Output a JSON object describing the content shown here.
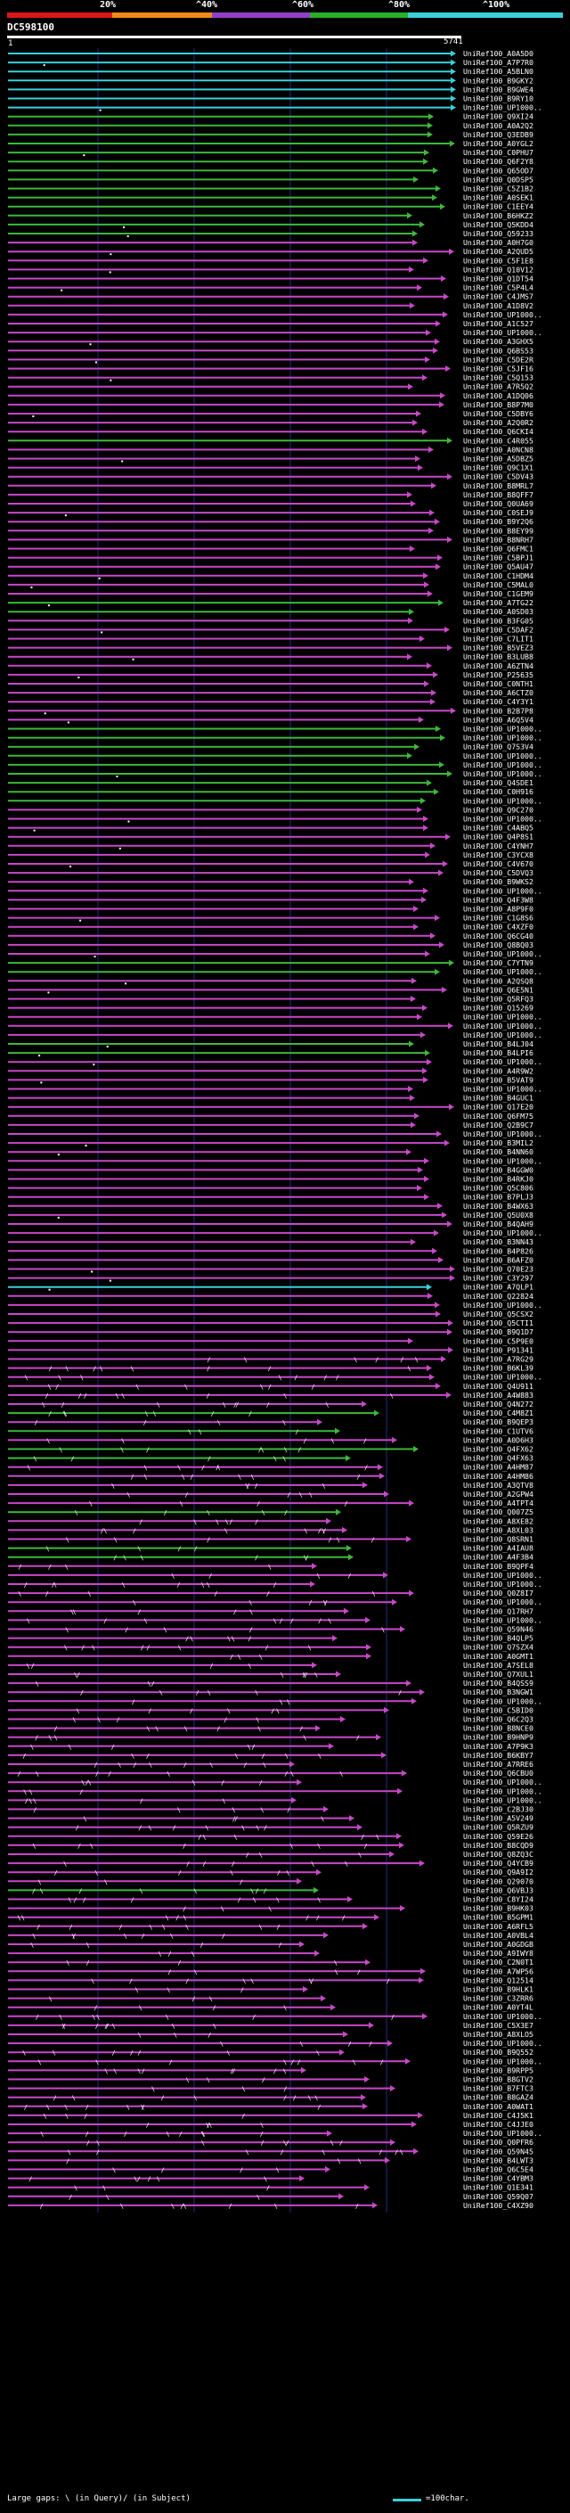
{
  "header": {
    "percent_labels": [
      "20%",
      "^40%",
      "^60%",
      "^80%",
      "^100%"
    ],
    "scale_colors": [
      "#d81818",
      "#f08a18",
      "#9040c8",
      "#28b028",
      "#3ad0d8"
    ],
    "query_id": "DC598100",
    "query_start": "1",
    "query_end": "5741"
  },
  "colors": {
    "cyan": "#3ad0d8",
    "green": "#3db83a",
    "magenta": "#c848c8",
    "bg": "#000000",
    "grid": "#2a2a7a"
  },
  "hits": [
    {
      "label": "UniRef100_A0A5D0",
      "c": "c"
    },
    {
      "label": "UniRef100_A7P7R0",
      "c": "c"
    },
    {
      "label": "UniRef100_A5BLN0",
      "c": "c"
    },
    {
      "label": "UniRef100_B9GKY2",
      "c": "c"
    },
    {
      "label": "UniRef100_B9GWE4",
      "c": "c"
    },
    {
      "label": "UniRef100_B9RY10",
      "c": "c"
    },
    {
      "label": "UniRef100_UP1000..",
      "c": "c"
    },
    {
      "label": "UniRef100_Q9XI24",
      "c": "g"
    },
    {
      "label": "UniRef100_A0A2Q2",
      "c": "g"
    },
    {
      "label": "UniRef100_Q3EDB9",
      "c": "g"
    },
    {
      "label": "UniRef100_A0YGL2",
      "c": "g"
    },
    {
      "label": "UniRef100_C0PHU7",
      "c": "g"
    },
    {
      "label": "UniRef100_Q6F2Y8",
      "c": "g"
    },
    {
      "label": "UniRef100_Q65OD7",
      "c": "g"
    },
    {
      "label": "UniRef100_Q0DSP5",
      "c": "g"
    },
    {
      "label": "UniRef100_C5Z1B2",
      "c": "g"
    },
    {
      "label": "UniRef100_A0SEK1",
      "c": "g"
    },
    {
      "label": "UniRef100_C1EEY4",
      "c": "g"
    },
    {
      "label": "UniRef100_B6HKZ2",
      "c": "g"
    },
    {
      "label": "UniRef100_Q5KDD4",
      "c": "g"
    },
    {
      "label": "UniRef100_Q59233",
      "c": "g"
    },
    {
      "label": "UniRef100_A0H7G0",
      "c": "m"
    },
    {
      "label": "UniRef100_A2QUD5",
      "c": "m"
    },
    {
      "label": "UniRef100_C5F1E8",
      "c": "m"
    },
    {
      "label": "UniRef100_Q10V12",
      "c": "m"
    },
    {
      "label": "UniRef100_Q1DT54",
      "c": "m"
    },
    {
      "label": "UniRef100_C5P4L4",
      "c": "m"
    },
    {
      "label": "UniRef100_C4JMS7",
      "c": "m"
    },
    {
      "label": "UniRef100_A1D8V2",
      "c": "m"
    },
    {
      "label": "UniRef100_UP1000..",
      "c": "m"
    },
    {
      "label": "UniRef100_A1C527",
      "c": "m"
    },
    {
      "label": "UniRef100_UP1000..",
      "c": "m"
    },
    {
      "label": "UniRef100_A3GHX5",
      "c": "m"
    },
    {
      "label": "UniRef100_Q6BS53",
      "c": "m"
    },
    {
      "label": "UniRef100_C5DE2R",
      "c": "m"
    },
    {
      "label": "UniRef100_C5JF16",
      "c": "m"
    },
    {
      "label": "UniRef100_C5Q153",
      "c": "m"
    },
    {
      "label": "UniRef100_A7R5Q2",
      "c": "m"
    },
    {
      "label": "UniRef100_A1DQ06",
      "c": "m"
    },
    {
      "label": "UniRef100_B8P7M0",
      "c": "m"
    },
    {
      "label": "UniRef100_C5DBY6",
      "c": "m"
    },
    {
      "label": "UniRef100_A2Q0R2",
      "c": "m"
    },
    {
      "label": "UniRef100_Q6CKI4",
      "c": "m"
    },
    {
      "label": "UniRef100_C4R055",
      "c": "g"
    },
    {
      "label": "UniRef100_A0NCN8",
      "c": "m"
    },
    {
      "label": "UniRef100_A5DBZ5",
      "c": "m"
    },
    {
      "label": "UniRef100_Q9C1X1",
      "c": "m"
    },
    {
      "label": "UniRef100_C5DV43",
      "c": "m"
    },
    {
      "label": "UniRef100_B8MRL7",
      "c": "m"
    },
    {
      "label": "UniRef100_B8QFF7",
      "c": "m"
    },
    {
      "label": "UniRef100_Q0UA69",
      "c": "m"
    },
    {
      "label": "UniRef100_C0SEJ9",
      "c": "m"
    },
    {
      "label": "UniRef100_B9Y2Q6",
      "c": "m"
    },
    {
      "label": "UniRef100_B8EY99",
      "c": "m"
    },
    {
      "label": "UniRef100_B8NRH7",
      "c": "m"
    },
    {
      "label": "UniRef100_Q6FMC1",
      "c": "m"
    },
    {
      "label": "UniRef100_C5BPJ1",
      "c": "m"
    },
    {
      "label": "UniRef100_Q5AU47",
      "c": "m"
    },
    {
      "label": "UniRef100_C1HDM4",
      "c": "m"
    },
    {
      "label": "UniRef100_C5MAL0",
      "c": "m"
    },
    {
      "label": "UniRef100_C1GEM9",
      "c": "m"
    },
    {
      "label": "UniRef100_A7TG22",
      "c": "g"
    },
    {
      "label": "UniRef100_A0SD03",
      "c": "g"
    },
    {
      "label": "UniRef100_B3FG05",
      "c": "m"
    },
    {
      "label": "UniRef100_C5DAF2",
      "c": "m"
    },
    {
      "label": "UniRef100_C7LIT1",
      "c": "m"
    },
    {
      "label": "UniRef100_B5VEZ3",
      "c": "m"
    },
    {
      "label": "UniRef100_B3LUB8",
      "c": "m"
    },
    {
      "label": "UniRef100_A6ZTN4",
      "c": "m"
    },
    {
      "label": "UniRef100_P25635",
      "c": "m"
    },
    {
      "label": "UniRef100_C0NTH1",
      "c": "m"
    },
    {
      "label": "UniRef100_A6CTZ0",
      "c": "m"
    },
    {
      "label": "UniRef100_C4Y3Y1",
      "c": "m"
    },
    {
      "label": "UniRef100_B2B7P8",
      "c": "m"
    },
    {
      "label": "UniRef100_A6Q5V4",
      "c": "m"
    },
    {
      "label": "UniRef100_UP1000..",
      "c": "g"
    },
    {
      "label": "UniRef100_UP1000..",
      "c": "g"
    },
    {
      "label": "UniRef100_Q7S3V4",
      "c": "g"
    },
    {
      "label": "UniRef100_UP1000..",
      "c": "g"
    },
    {
      "label": "UniRef100_UP1000..",
      "c": "g"
    },
    {
      "label": "UniRef100_UP1000..",
      "c": "g"
    },
    {
      "label": "UniRef100_Q4SDE1",
      "c": "g"
    },
    {
      "label": "UniRef100_C0H916",
      "c": "g"
    },
    {
      "label": "UniRef100_UP1000..",
      "c": "g"
    },
    {
      "label": "UniRef100_Q9C270",
      "c": "m"
    },
    {
      "label": "UniRef100_UP1000..",
      "c": "m"
    },
    {
      "label": "UniRef100_C4ABQ5",
      "c": "m"
    },
    {
      "label": "UniRef100_Q4P8S1",
      "c": "m"
    },
    {
      "label": "UniRef100_C4YNH7",
      "c": "m"
    },
    {
      "label": "UniRef100_C3YCX8",
      "c": "m"
    },
    {
      "label": "UniRef100_C4V670",
      "c": "m"
    },
    {
      "label": "UniRef100_C5DVQ3",
      "c": "m"
    },
    {
      "label": "UniRef100_B9WKS2",
      "c": "m"
    },
    {
      "label": "UniRef100_UP1000..",
      "c": "m"
    },
    {
      "label": "UniRef100_Q4F3W8",
      "c": "m"
    },
    {
      "label": "UniRef100_A8P9F0",
      "c": "m"
    },
    {
      "label": "UniRef100_C1G8S6",
      "c": "m"
    },
    {
      "label": "UniRef100_C4XZF0",
      "c": "m"
    },
    {
      "label": "UniRef100_Q6CG40",
      "c": "m"
    },
    {
      "label": "UniRef100_Q8BQ03",
      "c": "m"
    },
    {
      "label": "UniRef100_UP1000..",
      "c": "m"
    },
    {
      "label": "UniRef100_C7YTN9",
      "c": "g"
    },
    {
      "label": "UniRef100_UP1000..",
      "c": "g"
    },
    {
      "label": "UniRef100_A2QSQ8",
      "c": "m"
    },
    {
      "label": "UniRef100_Q6E5N1",
      "c": "m"
    },
    {
      "label": "UniRef100_Q5RFQ3",
      "c": "m"
    },
    {
      "label": "UniRef100_Q15269",
      "c": "m"
    },
    {
      "label": "UniRef100_UP1000..",
      "c": "m"
    },
    {
      "label": "UniRef100_UP1000..",
      "c": "m"
    },
    {
      "label": "UniRef100_UP1000..",
      "c": "m"
    },
    {
      "label": "UniRef100_B4LJ04",
      "c": "g"
    },
    {
      "label": "UniRef100_B4LPI6",
      "c": "g"
    },
    {
      "label": "UniRef100_UP1000..",
      "c": "m"
    },
    {
      "label": "UniRef100_A4R9W2",
      "c": "m"
    },
    {
      "label": "UniRef100_B5VAT9",
      "c": "m"
    },
    {
      "label": "UniRef100_UP1000..",
      "c": "m"
    },
    {
      "label": "UniRef100_B4GUC1",
      "c": "m"
    },
    {
      "label": "UniRef100_Q17E20",
      "c": "m"
    },
    {
      "label": "UniRef100_Q6FM75",
      "c": "m"
    },
    {
      "label": "UniRef100_Q2B9C7",
      "c": "m"
    },
    {
      "label": "UniRef100_UP1000..",
      "c": "m"
    },
    {
      "label": "UniRef100_B3MIL2",
      "c": "m"
    },
    {
      "label": "UniRef100_B4NN60",
      "c": "m"
    },
    {
      "label": "UniRef100_UP1000..",
      "c": "m"
    },
    {
      "label": "UniRef100_B4GGW0",
      "c": "m"
    },
    {
      "label": "UniRef100_B4RKJ0",
      "c": "m"
    },
    {
      "label": "UniRef100_Q5C806",
      "c": "m"
    },
    {
      "label": "UniRef100_B7PLJ3",
      "c": "m"
    },
    {
      "label": "UniRef100_B4WX63",
      "c": "m"
    },
    {
      "label": "UniRef100_Q5U0X8",
      "c": "m"
    },
    {
      "label": "UniRef100_B4QAH9",
      "c": "m"
    },
    {
      "label": "UniRef100_UP1000..",
      "c": "m"
    },
    {
      "label": "UniRef100_B3NN43",
      "c": "m"
    },
    {
      "label": "UniRef100_B4P826",
      "c": "m"
    },
    {
      "label": "UniRef100_B6AFZ0",
      "c": "m"
    },
    {
      "label": "UniRef100_Q70E23",
      "c": "m"
    },
    {
      "label": "UniRef100_C3Y297",
      "c": "m"
    },
    {
      "label": "UniRef100_A7QLP1",
      "c": "c"
    },
    {
      "label": "UniRef100_Q22824",
      "c": "m"
    },
    {
      "label": "UniRef100_UP1000..",
      "c": "m"
    },
    {
      "label": "UniRef100_Q5CSX2",
      "c": "m"
    },
    {
      "label": "UniRef100_Q5CTI1",
      "c": "m"
    },
    {
      "label": "UniRef100_B9Q1D7",
      "c": "m"
    },
    {
      "label": "UniRef100_C5P9E0",
      "c": "m"
    },
    {
      "label": "UniRef100_P91341",
      "c": "m"
    },
    {
      "label": "UniRef100_A7RG29",
      "c": "m"
    },
    {
      "label": "UniRef100_B6KL39",
      "c": "m"
    },
    {
      "label": "UniRef100_UP1000..",
      "c": "m"
    },
    {
      "label": "UniRef100_Q4U911",
      "c": "m"
    },
    {
      "label": "UniRef100_A4W883",
      "c": "m"
    },
    {
      "label": "UniRef100_Q4N272",
      "c": "m"
    },
    {
      "label": "UniRef100_C4M8Z1",
      "c": "g"
    },
    {
      "label": "UniRef100_B9QEP3",
      "c": "m"
    },
    {
      "label": "UniRef100_C1UTV6",
      "c": "g"
    },
    {
      "label": "UniRef100_A0D6H3",
      "c": "m"
    },
    {
      "label": "UniRef100_Q4FX62",
      "c": "g"
    },
    {
      "label": "UniRef100_Q4FX63",
      "c": "g"
    },
    {
      "label": "UniRef100_A4HM87",
      "c": "m"
    },
    {
      "label": "UniRef100_A4HM86",
      "c": "m"
    },
    {
      "label": "UniRef100_A3QTV8",
      "c": "m"
    },
    {
      "label": "UniRef100_A2GPW4",
      "c": "m"
    },
    {
      "label": "UniRef100_A4TPT4",
      "c": "m"
    },
    {
      "label": "UniRef100_Q007Z5",
      "c": "g"
    },
    {
      "label": "UniRef100_A8XE82",
      "c": "m"
    },
    {
      "label": "UniRef100_A8XL03",
      "c": "m"
    },
    {
      "label": "UniRef100_Q8SRN1",
      "c": "m"
    },
    {
      "label": "UniRef100_A4IAU8",
      "c": "g"
    },
    {
      "label": "UniRef100_A4F3B4",
      "c": "g"
    },
    {
      "label": "UniRef100_B9QPF4",
      "c": "m"
    },
    {
      "label": "UniRef100_UP1000..",
      "c": "m"
    },
    {
      "label": "UniRef100_UP1000..",
      "c": "m"
    },
    {
      "label": "UniRef100_Q0Z8I7",
      "c": "m"
    },
    {
      "label": "UniRef100_UP1000..",
      "c": "m"
    },
    {
      "label": "UniRef100_Q17RH7",
      "c": "m"
    },
    {
      "label": "UniRef100_UP1000..",
      "c": "m"
    },
    {
      "label": "UniRef100_Q59N46",
      "c": "m"
    },
    {
      "label": "UniRef100_B4QLP5",
      "c": "m"
    },
    {
      "label": "UniRef100_Q7SZX4",
      "c": "m"
    },
    {
      "label": "UniRef100_A0GMT1",
      "c": "m"
    },
    {
      "label": "UniRef100_A7SEL8",
      "c": "m"
    },
    {
      "label": "UniRef100_Q7XUL1",
      "c": "m"
    },
    {
      "label": "UniRef100_B4QSS9",
      "c": "m"
    },
    {
      "label": "UniRef100_B3NGW1",
      "c": "m"
    },
    {
      "label": "UniRef100_UP1000..",
      "c": "m"
    },
    {
      "label": "UniRef100_C5BID0",
      "c": "m"
    },
    {
      "label": "UniRef100_Q6C2Q3",
      "c": "m"
    },
    {
      "label": "UniRef100_B8NCE0",
      "c": "m"
    },
    {
      "label": "UniRef100_B9HNP9",
      "c": "m"
    },
    {
      "label": "UniRef100_A7P9K3",
      "c": "m"
    },
    {
      "label": "UniRef100_B6KBY7",
      "c": "m"
    },
    {
      "label": "UniRef100_A7RRE6",
      "c": "m"
    },
    {
      "label": "UniRef100_Q6CBU0",
      "c": "m"
    },
    {
      "label": "UniRef100_UP1000..",
      "c": "m"
    },
    {
      "label": "UniRef100_UP1000..",
      "c": "m"
    },
    {
      "label": "UniRef100_UP1000..",
      "c": "m"
    },
    {
      "label": "UniRef100_C2BJ30",
      "c": "m"
    },
    {
      "label": "UniRef100_A5V249",
      "c": "m"
    },
    {
      "label": "UniRef100_Q5RZU9",
      "c": "m"
    },
    {
      "label": "UniRef100_Q59E26",
      "c": "m"
    },
    {
      "label": "UniRef100_B8CQD9",
      "c": "m"
    },
    {
      "label": "UniRef100_Q8ZQ3C",
      "c": "m"
    },
    {
      "label": "UniRef100_Q4YCB9",
      "c": "m"
    },
    {
      "label": "UniRef100_Q9A9I2",
      "c": "m"
    },
    {
      "label": "UniRef100_Q29070",
      "c": "m"
    },
    {
      "label": "UniRef100_Q6VBJ3",
      "c": "g"
    },
    {
      "label": "UniRef100_C8YI24",
      "c": "m"
    },
    {
      "label": "UniRef100_B9HK03",
      "c": "m"
    },
    {
      "label": "UniRef100_B5GPM1",
      "c": "m"
    },
    {
      "label": "UniRef100_A6RFL5",
      "c": "m"
    },
    {
      "label": "UniRef100_A0VBL4",
      "c": "m"
    },
    {
      "label": "UniRef100_A0GDGB",
      "c": "m"
    },
    {
      "label": "UniRef100_A9IWY8",
      "c": "m"
    },
    {
      "label": "UniRef100_C2N0T1",
      "c": "m"
    },
    {
      "label": "UniRef100_A7WP56",
      "c": "m"
    },
    {
      "label": "UniRef100_Q12514",
      "c": "m"
    },
    {
      "label": "UniRef100_B9HLK1",
      "c": "m"
    },
    {
      "label": "UniRef100_C3ZRR6",
      "c": "m"
    },
    {
      "label": "UniRef100_A0YT4L",
      "c": "m"
    },
    {
      "label": "UniRef100_UP1000..",
      "c": "m"
    },
    {
      "label": "UniRef100_C5X3E7",
      "c": "m"
    },
    {
      "label": "UniRef100_A8XLO5",
      "c": "m"
    },
    {
      "label": "UniRef100_UP1000..",
      "c": "m"
    },
    {
      "label": "UniRef100_B9Q552",
      "c": "m"
    },
    {
      "label": "UniRef100_UP1000..",
      "c": "m"
    },
    {
      "label": "UniRef100_B9RPP5",
      "c": "m"
    },
    {
      "label": "UniRef100_B8GTV2",
      "c": "m"
    },
    {
      "label": "UniRef100_B7FTC3",
      "c": "m"
    },
    {
      "label": "UniRef100_B8GAZ4",
      "c": "m"
    },
    {
      "label": "UniRef100_A0WAT1",
      "c": "m"
    },
    {
      "label": "UniRef100_C4J5K1",
      "c": "m"
    },
    {
      "label": "UniRef100_C4JJE0",
      "c": "m"
    },
    {
      "label": "UniRef100_UP1000..",
      "c": "m"
    },
    {
      "label": "UniRef100_Q0PFR6",
      "c": "m"
    },
    {
      "label": "UniRef100_Q59N45",
      "c": "m"
    },
    {
      "label": "UniRef100_B4LWT3",
      "c": "m"
    },
    {
      "label": "UniRef100_Q6C5E4",
      "c": "m"
    },
    {
      "label": "UniRef100_C4YBM3",
      "c": "m"
    },
    {
      "label": "UniRef100_Q1E341",
      "c": "m"
    },
    {
      "label": "UniRef100_Q59Q07",
      "c": "m"
    },
    {
      "label": "UniRef100_C4XZ90",
      "c": "m"
    }
  ],
  "footer": {
    "legend": "Large gaps: \\ (in Query)/ (in Subject)",
    "scale": "=100char."
  }
}
